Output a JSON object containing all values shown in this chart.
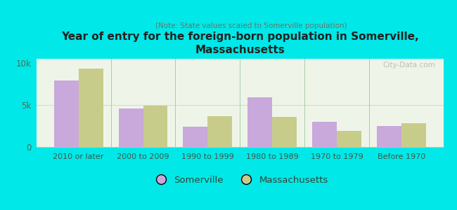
{
  "title": "Year of entry for the foreign-born population in Somerville,\nMassachusetts",
  "subtitle": "(Note: State values scaled to Somerville population)",
  "categories": [
    "2010 or later",
    "2000 to 2009",
    "1990 to 1999",
    "1980 to 1989",
    "1970 to 1979",
    "Before 1970"
  ],
  "somerville_values": [
    7900,
    4600,
    2400,
    5900,
    3000,
    2500
  ],
  "massachusetts_values": [
    9300,
    4900,
    3700,
    3600,
    1900,
    2800
  ],
  "somerville_color": "#c9a8dc",
  "massachusetts_color": "#c8cc8a",
  "background_color": "#00e8e8",
  "plot_bg_color": "#eef5e8",
  "yticks": [
    0,
    5000,
    10000
  ],
  "ytick_labels": [
    "0",
    "5k",
    "10k"
  ],
  "ylim": [
    0,
    10500
  ],
  "bar_width": 0.38,
  "watermark": "City-Data.com",
  "legend_somerville": "Somerville",
  "legend_massachusetts": "Massachusetts",
  "divider_color": "#aaccaa",
  "spine_color": "#aaccaa"
}
